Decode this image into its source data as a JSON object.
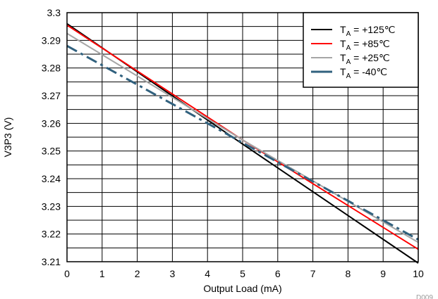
{
  "chart_data": {
    "type": "line",
    "xlabel": "Output Load (mA)",
    "ylabel": "V3P3 (V)",
    "xlim": [
      0,
      10
    ],
    "ylim": [
      3.21,
      3.3
    ],
    "x_ticks": [
      "0",
      "1",
      "2",
      "3",
      "4",
      "5",
      "6",
      "7",
      "8",
      "9",
      "10"
    ],
    "y_ticks": [
      "3.21",
      "3.22",
      "3.23",
      "3.24",
      "3.25",
      "3.26",
      "3.27",
      "3.28",
      "3.29",
      "3.3"
    ],
    "grid": true,
    "legend_position": "top-right",
    "figure_id": "D009",
    "series": [
      {
        "name": "T",
        "subscript": "A",
        "suffix": " = +125℃",
        "color": "#000000",
        "dash": "solid",
        "x": [
          0,
          5,
          10
        ],
        "y": [
          3.296,
          3.2525,
          3.2095
        ]
      },
      {
        "name": "T",
        "subscript": "A",
        "suffix": " = +85℃",
        "color": "#ff0000",
        "dash": "solid",
        "x": [
          0,
          5,
          10
        ],
        "y": [
          3.2955,
          3.254,
          3.2145
        ]
      },
      {
        "name": "T",
        "subscript": "A",
        "suffix": " = +25℃",
        "color": "#a6a6a6",
        "dash": "solid",
        "x": [
          0,
          5,
          10
        ],
        "y": [
          3.2925,
          3.254,
          3.217
        ]
      },
      {
        "name": "T",
        "subscript": "A",
        "suffix": " = -40℃",
        "color": "#31617e",
        "dash": "dashdot",
        "x": [
          0,
          5,
          10
        ],
        "y": [
          3.288,
          3.253,
          3.218
        ]
      }
    ]
  }
}
